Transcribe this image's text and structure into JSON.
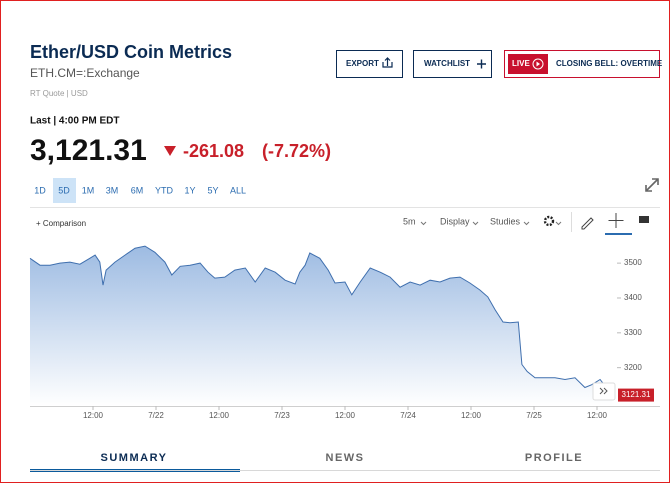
{
  "header": {
    "title": "Ether/USD Coin Metrics",
    "symbol": "ETH.CM=:Exchange",
    "quote_note": "RT Quote | USD"
  },
  "buttons": {
    "export": "EXPORT",
    "watchlist": "WATCHLIST",
    "live": "LIVE",
    "closing_bell": "CLOSING BELL: OVERTIME"
  },
  "quote": {
    "last_time": "Last | 4:00 PM EDT",
    "price": "3,121.31",
    "change": "-261.08",
    "change_pct": "(-7.72%)"
  },
  "ranges": [
    "1D",
    "5D",
    "1M",
    "3M",
    "6M",
    "YTD",
    "1Y",
    "5Y",
    "ALL"
  ],
  "selected_range": "5D",
  "toolbar": {
    "comparison": "+ Comparison",
    "interval": "5m",
    "display": "Display",
    "studies": "Studies"
  },
  "chart_data": {
    "type": "line",
    "color": "#3f6fae",
    "x": [
      0,
      1.9,
      3.8,
      5.7,
      7.6,
      9.5,
      11.4,
      12.4,
      13.3,
      13.9,
      14.5,
      16.2,
      18.1,
      20,
      21.9,
      23.8,
      25.7,
      27,
      28.6,
      30.5,
      32.4,
      33.9,
      35.2,
      37.1,
      39,
      41,
      42.9,
      44.8,
      46.7,
      48.6,
      50.5,
      51.4,
      52.4,
      53.3,
      55.2,
      56.8,
      58.1,
      60,
      61.3,
      62.9,
      64.8,
      66.7,
      68.6,
      70.5,
      72.4,
      74.3,
      76.2,
      78.1,
      80,
      81.9,
      83.8,
      85.7,
      87.2,
      88.6,
      90.1,
      91.4,
      93,
      93.7,
      94.7,
      96.2,
      98.1,
      100,
      101.9,
      103.8,
      105.7,
      107,
      108.6,
      110.9
    ],
    "values": [
      3514,
      3494,
      3494,
      3500,
      3503,
      3497,
      3514,
      3523,
      3503,
      3437,
      3480,
      3503,
      3523,
      3543,
      3549,
      3531,
      3503,
      3466,
      3491,
      3494,
      3500,
      3474,
      3457,
      3460,
      3480,
      3486,
      3446,
      3486,
      3474,
      3451,
      3440,
      3474,
      3494,
      3529,
      3514,
      3480,
      3443,
      3446,
      3409,
      3446,
      3486,
      3474,
      3460,
      3431,
      3446,
      3437,
      3451,
      3446,
      3457,
      3460,
      3443,
      3423,
      3403,
      3366,
      3331,
      3329,
      3331,
      3209,
      3189,
      3171,
      3171,
      3171,
      3166,
      3171,
      3143,
      3151,
      3166,
      3121.31
    ],
    "xlim": [
      0,
      111
    ],
    "xticks": [
      {
        "value": 12,
        "label": "12:00"
      },
      {
        "value": 24,
        "label": "7/22"
      },
      {
        "value": 36,
        "label": "12:00"
      },
      {
        "value": 48,
        "label": "7/23"
      },
      {
        "value": 60,
        "label": "12:00"
      },
      {
        "value": 72,
        "label": "7/24"
      },
      {
        "value": 84,
        "label": "12:00"
      },
      {
        "value": 96,
        "label": "7/25"
      },
      {
        "value": 108,
        "label": "12:00"
      }
    ],
    "ylim": [
      3090,
      3575
    ],
    "yticks": [
      3200,
      3300,
      3400,
      3500
    ],
    "grid": false,
    "last_label": "3121.31"
  },
  "tabs": [
    "SUMMARY",
    "NEWS",
    "PROFILE"
  ],
  "active_tab": "SUMMARY"
}
